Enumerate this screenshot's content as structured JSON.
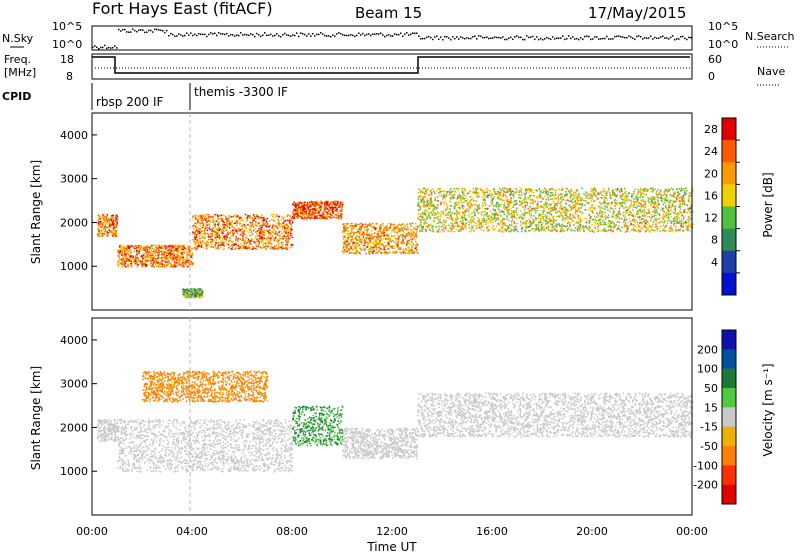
{
  "header": {
    "title": "Fort Hays East (fitACF)",
    "beam": "Beam 15",
    "date": "17/May/2015"
  },
  "strip": {
    "nsky_label": "N.Sky",
    "nsky_ticks": [
      "10^5",
      "10^0"
    ],
    "nsearch_label": "N.Search",
    "nsearch_ticks": [
      "10^5",
      "10^0"
    ],
    "freq_label": "Freq.",
    "freq_unit": "[MHz]",
    "freq_ticks": [
      "18",
      "8"
    ],
    "nave_label": "Nave",
    "nave_ticks": [
      "60",
      "0"
    ],
    "cpid_label": "CPID",
    "cpid_entries": [
      "rbsp 200 IF",
      "themis -3300 IF"
    ]
  },
  "axes": {
    "y_label": "Slant Range [km]",
    "y_ticks": [
      "4000",
      "3000",
      "2000",
      "1000"
    ],
    "x_ticks": [
      "00:00",
      "04:00",
      "08:00",
      "12:00",
      "16:00",
      "20:00",
      "00:00"
    ],
    "x_label": "Time UT"
  },
  "power_scale": {
    "label": "Power [dB]",
    "ticks": [
      "28",
      "24",
      "20",
      "16",
      "12",
      "8",
      "4"
    ],
    "colors": [
      "#e00000",
      "#ff5a00",
      "#ff9a00",
      "#f0d000",
      "#50c040",
      "#2e8b57",
      "#1f3ea8",
      "#0010d0"
    ]
  },
  "velocity_scale": {
    "label": "Velocity [m s⁻¹]",
    "ticks": [
      "200",
      "100",
      "50",
      "15",
      "-15",
      "-50",
      "-100",
      "-200"
    ],
    "colors": [
      "#1010b0",
      "#0050a0",
      "#1b7a3a",
      "#50c840",
      "#c8c8c8",
      "#f0b000",
      "#ff8000",
      "#ff3000",
      "#e00000"
    ]
  },
  "chart_data": [
    {
      "type": "heatmap",
      "title": "Power",
      "x_range_hours": [
        0,
        24
      ],
      "y_range_km": [
        0,
        4500
      ],
      "scatter_bands": [
        {
          "t": [
            0.2,
            1.0
          ],
          "range_km": [
            1700,
            2200
          ],
          "power": 22
        },
        {
          "t": [
            1.0,
            4.0
          ],
          "range_km": [
            1000,
            1500
          ],
          "power": 22
        },
        {
          "t": [
            4.0,
            8.0
          ],
          "range_km": [
            1400,
            2200
          ],
          "power": 22
        },
        {
          "t": [
            8.0,
            10.0
          ],
          "range_km": [
            2100,
            2500
          ],
          "power": 24
        },
        {
          "t": [
            10.0,
            13.0
          ],
          "range_km": [
            1300,
            2000
          ],
          "power": 20
        },
        {
          "t": [
            13.0,
            24.0
          ],
          "range_km": [
            1800,
            2800
          ],
          "power": 16
        },
        {
          "t": [
            3.6,
            4.4
          ],
          "range_km": [
            300,
            500
          ],
          "power": 12
        }
      ]
    },
    {
      "type": "heatmap",
      "title": "Velocity",
      "x_range_hours": [
        0,
        24
      ],
      "y_range_km": [
        0,
        4500
      ],
      "scatter_bands": [
        {
          "t": [
            0.2,
            1.0
          ],
          "range_km": [
            1700,
            2200
          ],
          "velocity": 0
        },
        {
          "t": [
            1.0,
            8.0
          ],
          "range_km": [
            1000,
            2200
          ],
          "velocity": 0
        },
        {
          "t": [
            8.0,
            10.0
          ],
          "range_km": [
            1600,
            2500
          ],
          "velocity": 30
        },
        {
          "t": [
            10.0,
            13.0
          ],
          "range_km": [
            1300,
            2000
          ],
          "velocity": 0
        },
        {
          "t": [
            13.0,
            24.0
          ],
          "range_km": [
            1800,
            2800
          ],
          "velocity": 0
        },
        {
          "t": [
            2.0,
            7.0
          ],
          "range_km": [
            2600,
            3300
          ],
          "velocity": -40
        }
      ]
    }
  ]
}
